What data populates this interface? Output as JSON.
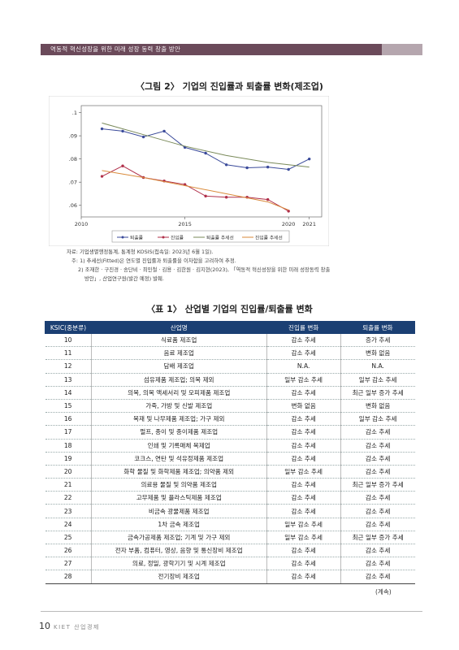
{
  "header": {
    "text": "역동적 혁신성장을 위한 미래 성장 동력 창출 방안"
  },
  "figure": {
    "title": "〈그림 2〉 기업의 진입률과 퇴출률 변화(제조업)",
    "notes": [
      "자료: 기업생멸행정통계, 통계청 KOSIS(접속일: 2023년 6월 1일).",
      "주: 1) 추세선(Fitted)은 연도별 진입률과 퇴출률을 이차함을 고려하여 추정.",
      "2) 조재한 · 구진경 · 송단비 · 최민철 · 김용 · 김한원 · 김지현(2023), 「역동적 혁신성장을 위한 미래 성장동력 창출",
      "방안」, 산업연구원(발간 예정) 발췌."
    ]
  },
  "chart_data": {
    "type": "line",
    "x": [
      2011,
      2012,
      2013,
      2014,
      2015,
      2016,
      2017,
      2018,
      2019,
      2020,
      2021
    ],
    "xticks": [
      "2010",
      "2015",
      "2020",
      "2021"
    ],
    "xtick_values": [
      2010,
      2015,
      2020,
      2021
    ],
    "yticks": [
      ".06",
      ".07",
      ".08",
      ".09",
      ".1"
    ],
    "ytick_values": [
      0.06,
      0.07,
      0.08,
      0.09,
      0.1
    ],
    "xlim": [
      2010,
      2021.6
    ],
    "ylim": [
      0.055,
      0.103
    ],
    "series": [
      {
        "name": "퇴출률",
        "color": "#3a4a9a",
        "marker": "dot",
        "x": [
          2011,
          2012,
          2013,
          2014,
          2015,
          2016,
          2017,
          2018,
          2019,
          2020,
          2021
        ],
        "values": [
          0.093,
          0.092,
          0.0895,
          0.092,
          0.085,
          0.0825,
          0.0775,
          0.0762,
          0.0765,
          0.0755,
          0.08
        ]
      },
      {
        "name": "진입률",
        "color": "#b0304a",
        "marker": "dot",
        "x": [
          2011,
          2012,
          2013,
          2014,
          2015,
          2016,
          2017,
          2018,
          2019,
          2020
        ],
        "values": [
          0.0725,
          0.077,
          0.072,
          0.0705,
          0.069,
          0.064,
          0.0635,
          0.0635,
          0.0625,
          0.0575
        ]
      },
      {
        "name": "퇴출률 추세선",
        "color": "#7a8a5a",
        "marker": "none",
        "x": [
          2011,
          2013,
          2015,
          2017,
          2019,
          2021
        ],
        "values": [
          0.0955,
          0.0905,
          0.0855,
          0.0815,
          0.0785,
          0.0765
        ]
      },
      {
        "name": "진입률 추세선",
        "color": "#d98a3a",
        "marker": "none",
        "x": [
          2011,
          2013,
          2015,
          2017,
          2019,
          2020
        ],
        "values": [
          0.075,
          0.072,
          0.0685,
          0.065,
          0.0615,
          0.058
        ]
      }
    ]
  },
  "table": {
    "title": "〈표 1〉 산업별 기업의 진입률/퇴출률 변화",
    "headers": [
      "KSIC(중분류)",
      "산업명",
      "진입률 변화",
      "퇴출률 변화"
    ],
    "rows": [
      [
        "10",
        "식료품 제조업",
        "감소 추세",
        "증가 추세"
      ],
      [
        "11",
        "음료 제조업",
        "감소 추세",
        "변화 없음"
      ],
      [
        "12",
        "담배 제조업",
        "N.A.",
        "N.A."
      ],
      [
        "13",
        "섬유제품 제조업; 의복 제외",
        "일부 감소 추세",
        "일부 감소 추세"
      ],
      [
        "14",
        "의복, 의복 액세서리 및 모피제품 제조업",
        "감소 추세",
        "최근 일부 증가 추세"
      ],
      [
        "15",
        "가죽, 가방 및 신발 제조업",
        "변화 없음",
        "변화 없음"
      ],
      [
        "16",
        "목재 및 나무제품 제조업; 가구 제외",
        "감소 추세",
        "일부 감소 추세"
      ],
      [
        "17",
        "펄프, 종이 및 종이제품 제조업",
        "감소 추세",
        "감소 추세"
      ],
      [
        "18",
        "인쇄 및 기록매체 복제업",
        "감소 추세",
        "감소 추세"
      ],
      [
        "19",
        "코크스, 연탄 및 석유정제품 제조업",
        "감소 추세",
        "감소 추세"
      ],
      [
        "20",
        "화학 물질 및 화학제품 제조업; 의약품 제외",
        "일부 감소 추세",
        "감소 추세"
      ],
      [
        "21",
        "의료용 물질 및 의약품 제조업",
        "감소 추세",
        "최근 일부 증가 추세"
      ],
      [
        "22",
        "고무제품 및 플라스틱제품 제조업",
        "감소 추세",
        "감소 추세"
      ],
      [
        "23",
        "비금속 광물제품 제조업",
        "감소 추세",
        "감소 추세"
      ],
      [
        "24",
        "1차 금속 제조업",
        "일부 감소 추세",
        "감소 추세"
      ],
      [
        "25",
        "금속가공제품 제조업; 기계 및 가구 제외",
        "일부 감소 추세",
        "최근 일부 증가 추세"
      ],
      [
        "26",
        "전자 부품, 컴퓨터, 영상, 음향 및 통신장비 제조업",
        "감소 추세",
        "감소 추세"
      ],
      [
        "27",
        "의료, 정밀, 광학기기 및 시계 제조업",
        "감소 추세",
        "감소 추세"
      ],
      [
        "28",
        "전기장비 제조업",
        "감소 추세",
        "감소 추세"
      ]
    ],
    "continued": "(계속)"
  },
  "footer": {
    "page": "10",
    "text": "KIET 산업경제"
  }
}
